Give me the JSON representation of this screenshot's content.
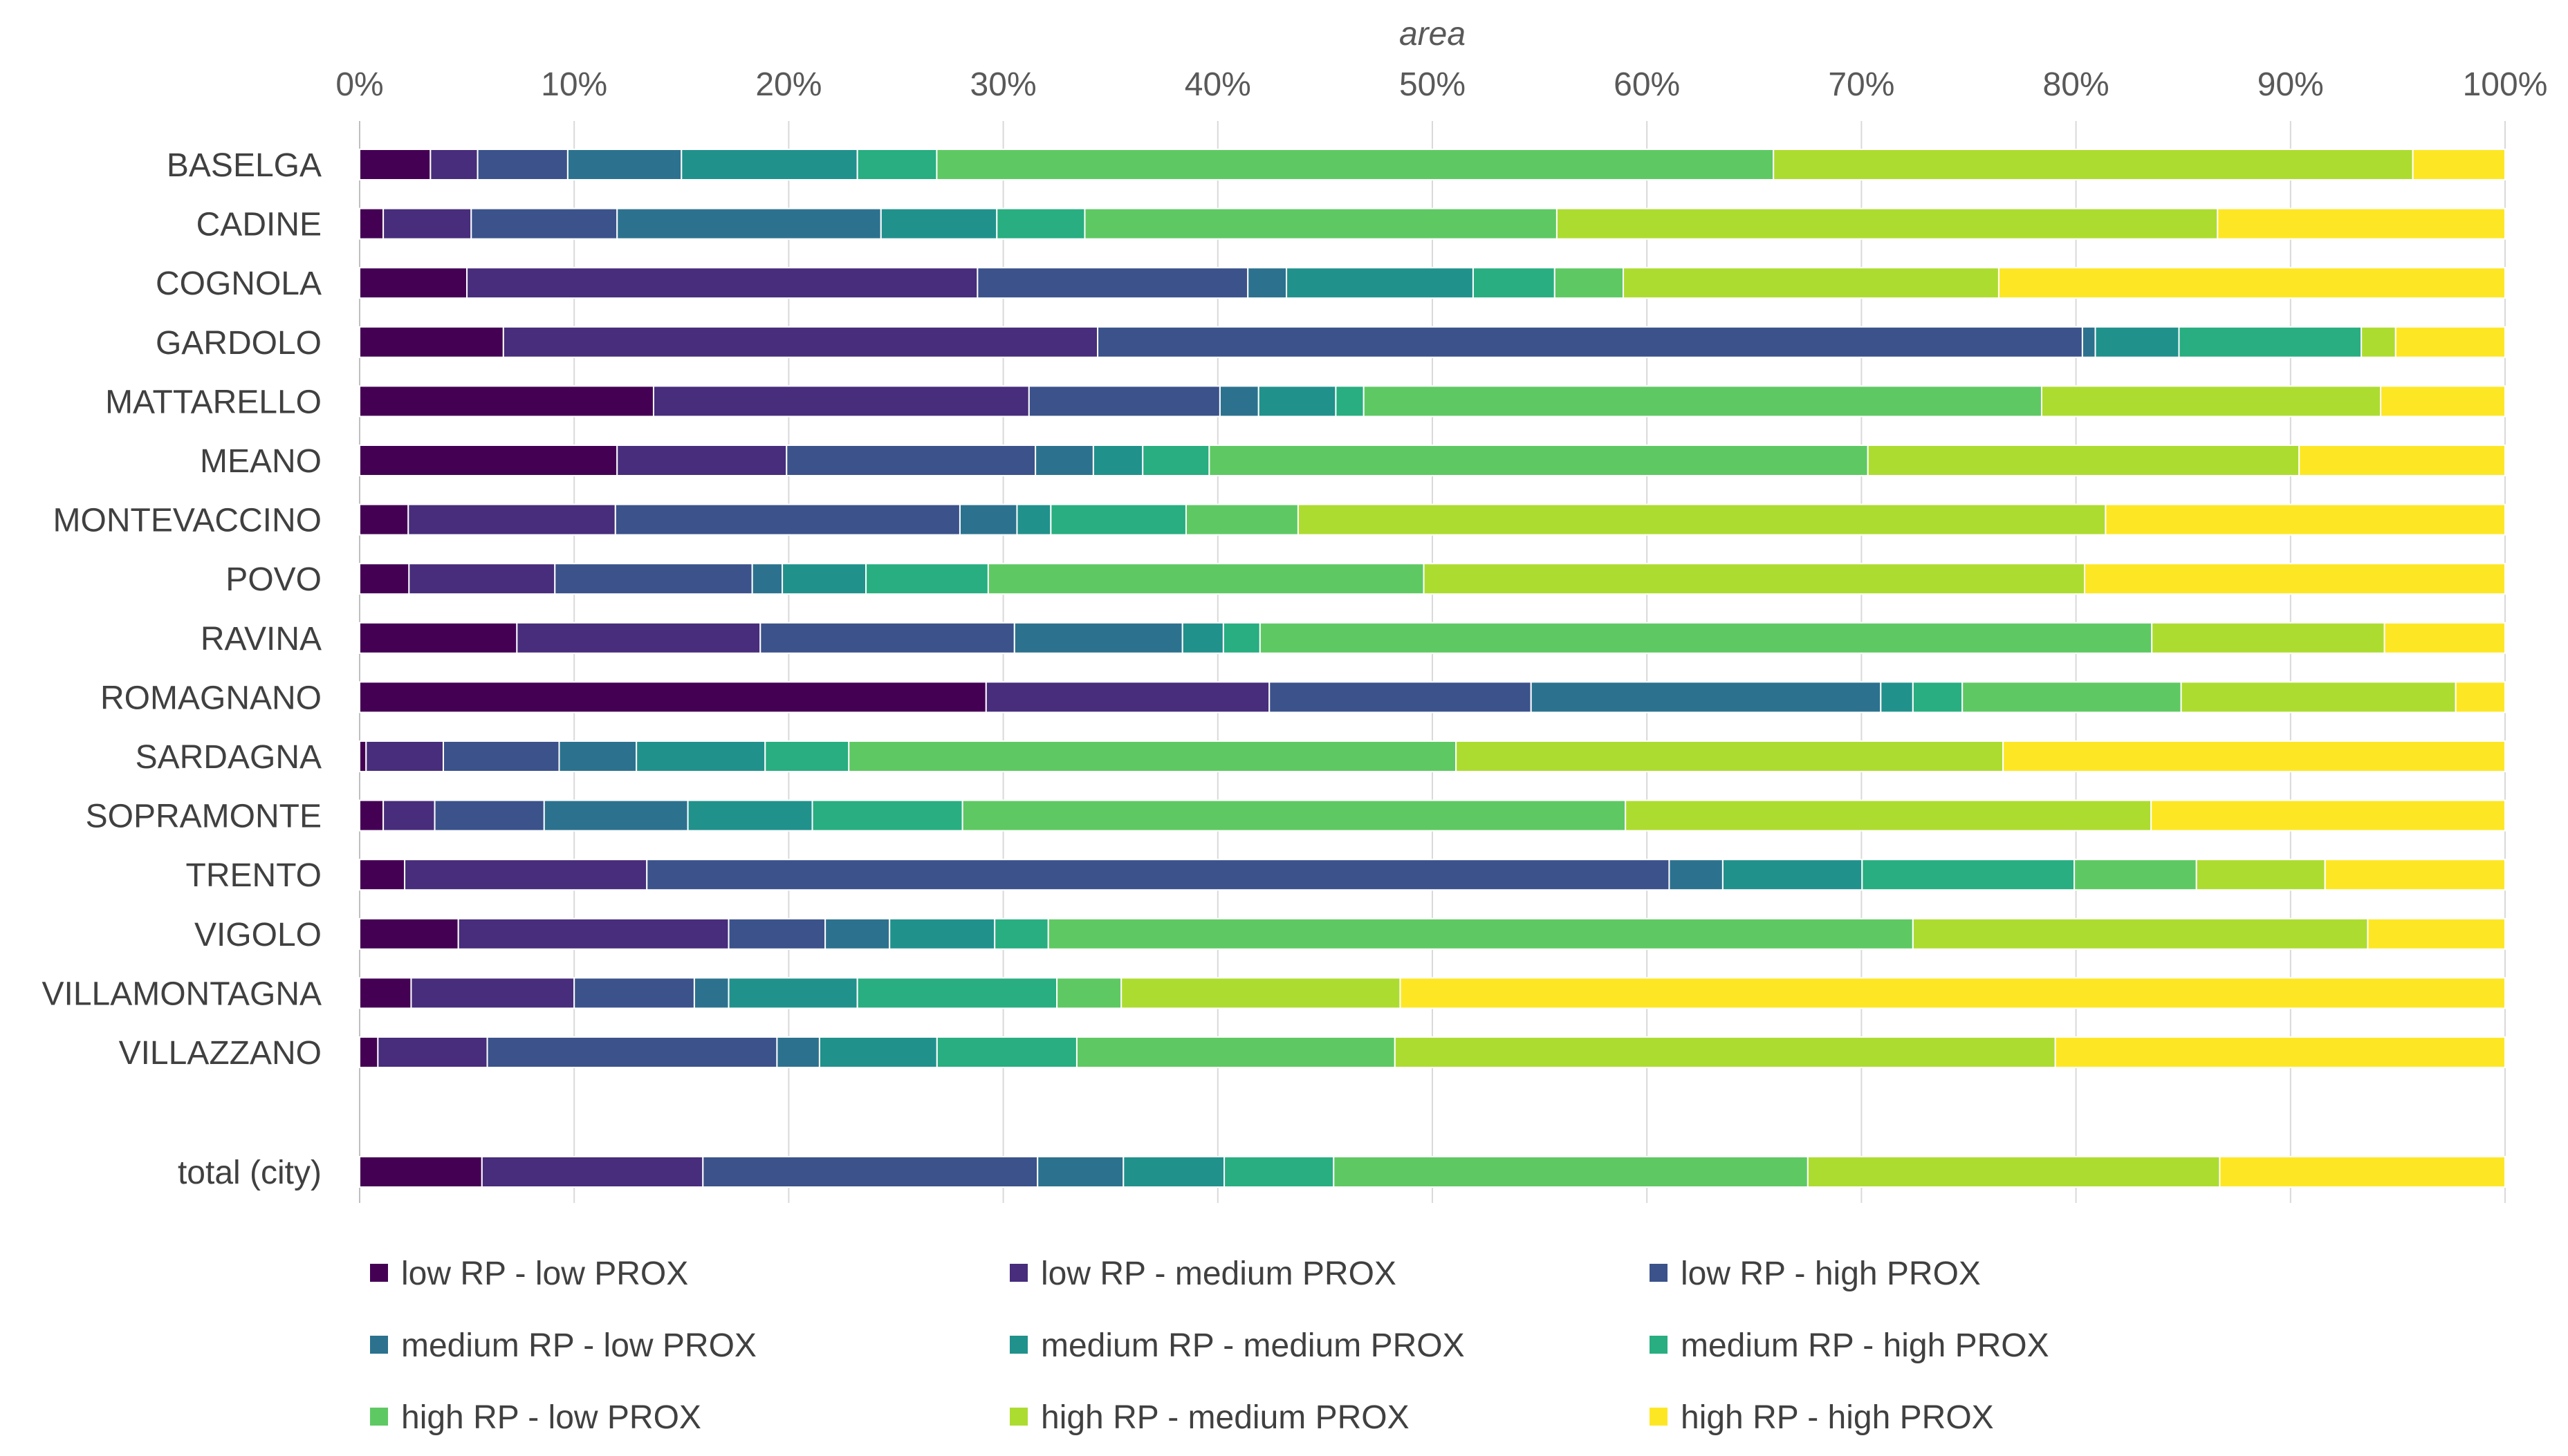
{
  "chart_data": {
    "type": "bar",
    "orientation": "horizontal",
    "stacked": "percent",
    "xlabel": "area",
    "xlim": [
      0,
      100
    ],
    "ticks": [
      "0%",
      "10%",
      "20%",
      "30%",
      "40%",
      "50%",
      "60%",
      "70%",
      "80%",
      "90%",
      "100%"
    ],
    "legend_position": "bottom",
    "categories": [
      "BASELGA",
      "CADINE",
      "COGNOLA",
      "GARDOLO",
      "MATTARELLO",
      "MEANO",
      "MONTEVACCINO",
      "POVO",
      "RAVINA",
      "ROMAGNANO",
      "SARDAGNA",
      "SOPRAMONTE",
      "TRENTO",
      "VIGOLO",
      "VILLAMONTAGNA",
      "VILLAZZANO",
      "total (city)"
    ],
    "series": [
      {
        "name": "low RP - low PROX",
        "color": "#440154",
        "values": [
          3.3,
          1.1,
          5.0,
          6.7,
          13.7,
          12.0,
          2.3,
          2.3,
          7.3,
          29.2,
          0.3,
          1.1,
          2.1,
          4.6,
          2.4,
          0.9,
          5.7
        ]
      },
      {
        "name": "low RP - medium PROX",
        "color": "#472d7b",
        "values": [
          2.2,
          4.1,
          23.8,
          27.7,
          17.5,
          7.9,
          9.8,
          6.8,
          11.3,
          13.2,
          3.6,
          2.4,
          11.3,
          12.6,
          7.6,
          5.4,
          10.3
        ]
      },
      {
        "name": "low RP - high PROX",
        "color": "#3b528b",
        "values": [
          4.2,
          6.8,
          12.6,
          45.9,
          8.9,
          11.6,
          16.3,
          9.2,
          11.8,
          12.2,
          5.4,
          5.1,
          47.7,
          4.5,
          5.6,
          14.3,
          15.6
        ]
      },
      {
        "name": "medium RP - low PROX",
        "color": "#2c728e",
        "values": [
          5.3,
          12.3,
          1.8,
          0.6,
          1.8,
          2.7,
          2.7,
          1.4,
          7.8,
          16.3,
          3.6,
          6.7,
          2.5,
          3.0,
          1.6,
          2.1,
          4.0
        ]
      },
      {
        "name": "medium RP - medium PROX",
        "color": "#21918c",
        "values": [
          8.2,
          5.4,
          8.7,
          3.9,
          3.6,
          2.3,
          1.6,
          3.9,
          1.9,
          1.5,
          6.0,
          5.8,
          6.5,
          4.9,
          6.0,
          5.8,
          4.7
        ]
      },
      {
        "name": "medium RP - high PROX",
        "color": "#28ae80",
        "values": [
          3.7,
          4.1,
          3.8,
          8.5,
          1.3,
          3.1,
          6.4,
          5.7,
          1.7,
          2.3,
          3.9,
          7.0,
          9.9,
          2.5,
          9.3,
          6.9,
          5.1
        ]
      },
      {
        "name": "high RP - low PROX",
        "color": "#5ec962",
        "values": [
          39.0,
          22.0,
          3.2,
          0.0,
          31.6,
          30.7,
          5.3,
          20.3,
          41.4,
          10.2,
          28.3,
          30.9,
          5.7,
          40.3,
          3.0,
          15.7,
          22.1
        ]
      },
      {
        "name": "high RP - medium PROX",
        "color": "#addc30",
        "values": [
          29.8,
          30.8,
          17.5,
          1.6,
          15.8,
          20.1,
          38.2,
          30.8,
          10.8,
          12.8,
          25.5,
          24.5,
          6.0,
          21.2,
          13.0,
          32.6,
          19.2
        ]
      },
      {
        "name": "high RP - high PROX",
        "color": "#fde725",
        "values": [
          4.3,
          13.4,
          23.6,
          5.1,
          5.8,
          9.6,
          18.9,
          19.6,
          5.6,
          2.3,
          23.4,
          16.5,
          8.4,
          6.4,
          51.5,
          22.2,
          13.3
        ]
      }
    ]
  }
}
